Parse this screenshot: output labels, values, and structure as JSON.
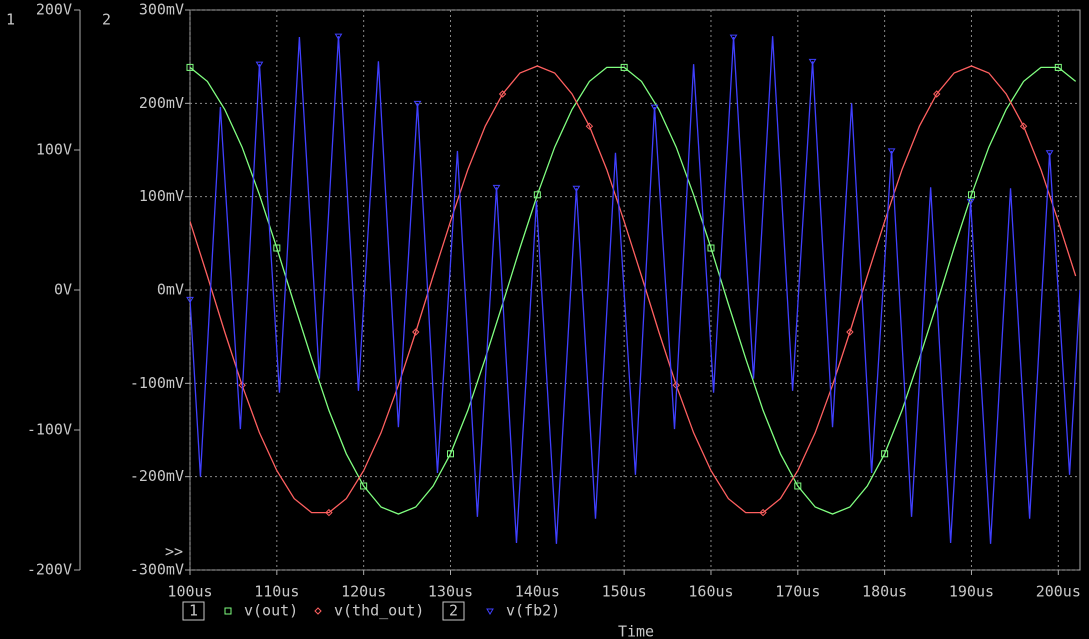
{
  "chart_data": {
    "type": "line",
    "y_axis_label": "1",
    "y2_axis_label": "2",
    "x_axis_label": "Time",
    "overflow_marker": ">>",
    "xlim": [
      100,
      202.5
    ],
    "xticks": [
      {
        "value": 100,
        "label": "100us"
      },
      {
        "value": 110,
        "label": "110us"
      },
      {
        "value": 120,
        "label": "120us"
      },
      {
        "value": 130,
        "label": "130us"
      },
      {
        "value": 140,
        "label": "140us"
      },
      {
        "value": 150,
        "label": "150us"
      },
      {
        "value": 160,
        "label": "160us"
      },
      {
        "value": 170,
        "label": "170us"
      },
      {
        "value": 180,
        "label": "180us"
      },
      {
        "value": 190,
        "label": "190us"
      },
      {
        "value": 200,
        "label": "200us"
      }
    ],
    "ylim": [
      -200,
      200
    ],
    "yticks": [
      {
        "value": 200,
        "label": "200V"
      },
      {
        "value": 100,
        "label": "100V"
      },
      {
        "value": 0,
        "label": "0V"
      },
      {
        "value": -100,
        "label": "-100V"
      },
      {
        "value": -200,
        "label": "-200V"
      }
    ],
    "y2lim": [
      -300,
      300
    ],
    "y2ticks": [
      {
        "value": 300,
        "label": "300mV"
      },
      {
        "value": 200,
        "label": "200mV"
      },
      {
        "value": 100,
        "label": "100mV"
      },
      {
        "value": 0,
        "label": "0mV"
      },
      {
        "value": -100,
        "label": "-100mV"
      },
      {
        "value": -200,
        "label": "-200mV"
      },
      {
        "value": -300,
        "label": "-300mV"
      }
    ],
    "grid": true,
    "x": [
      100,
      102,
      104,
      106,
      108,
      110,
      112,
      114,
      116,
      118,
      120,
      122,
      124,
      126,
      128,
      130,
      132,
      134,
      136,
      138,
      140,
      142,
      144,
      146,
      148,
      150,
      152,
      154,
      156,
      158,
      160,
      162,
      164,
      166,
      168,
      170,
      172,
      174,
      176,
      178,
      180,
      182,
      184,
      186,
      188,
      190,
      192,
      194,
      196,
      198,
      200,
      202
    ],
    "series": [
      {
        "name": "v(out)",
        "color": "#80ff80",
        "axis": "y",
        "marker": "square",
        "values": [
          159,
          149,
          129,
          102,
          68,
          30,
          -10,
          -49,
          -86,
          -117,
          -140,
          -155,
          -160,
          -155,
          -140,
          -117,
          -86,
          -49,
          -10,
          30,
          68,
          102,
          129,
          149,
          159,
          159,
          149,
          129,
          102,
          68,
          30,
          -10,
          -49,
          -86,
          -117,
          -140,
          -155,
          -160,
          -155,
          -140,
          -117,
          -86,
          -49,
          -10,
          30,
          68,
          102,
          129,
          149,
          159,
          159,
          149
        ]
      },
      {
        "name": "v(thd_out)",
        "color": "#ff6060",
        "axis": "y",
        "marker": "diamond",
        "values": [
          49,
          10,
          -30,
          -68,
          -102,
          -129,
          -149,
          -159,
          -159,
          -149,
          -129,
          -102,
          -68,
          -30,
          10,
          49,
          86,
          117,
          140,
          155,
          160,
          155,
          140,
          117,
          86,
          49,
          10,
          -30,
          -68,
          -102,
          -129,
          -149,
          -159,
          -159,
          -149,
          -129,
          -102,
          -68,
          -30,
          10,
          49,
          86,
          117,
          140,
          155,
          160,
          155,
          140,
          117,
          86,
          49,
          10
        ]
      },
      {
        "name": "v(fb2)",
        "color": "#4040ff",
        "axis": "y2",
        "marker": "triangle",
        "x": [
          100,
          101.2,
          103.5,
          105.8,
          108.0,
          110.3,
          112.6,
          114.9,
          117.1,
          119.4,
          121.7,
          124.0,
          126.2,
          128.5,
          130.8,
          133.1,
          135.3,
          137.6,
          139.9,
          142.2,
          144.5,
          146.7,
          149.0,
          151.3,
          153.5,
          155.8,
          158.0,
          160.3,
          162.6,
          164.9,
          167.1,
          169.4,
          171.7,
          174.0,
          176.2,
          178.5,
          180.8,
          183.1,
          185.3,
          187.6,
          189.9,
          192.2,
          194.5,
          196.7,
          199.0,
          201.3,
          202.5
        ],
        "values": [
          -10,
          -200,
          196,
          -149,
          242,
          -110,
          271,
          -95,
          272,
          -108,
          245,
          -147,
          200,
          -196,
          149,
          -243,
          110,
          -271,
          95,
          -272,
          109,
          -245,
          147,
          -198,
          196,
          -149,
          242,
          -110,
          271,
          -95,
          272,
          -108,
          245,
          -147,
          200,
          -196,
          149,
          -243,
          110,
          -271,
          95,
          -272,
          109,
          -245,
          147,
          -198,
          0
        ]
      }
    ]
  }
}
